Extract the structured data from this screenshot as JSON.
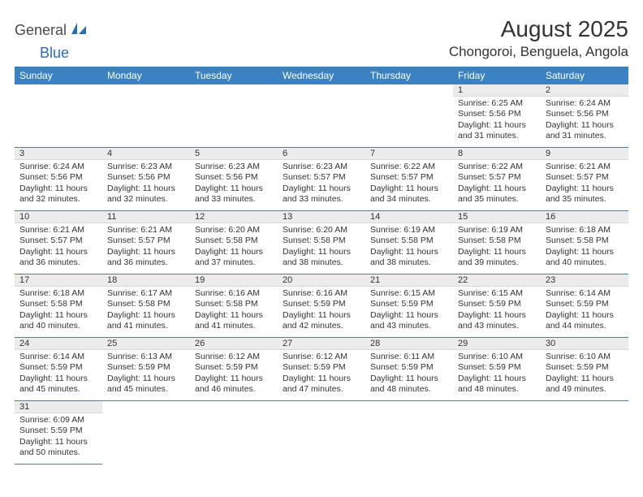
{
  "logo": {
    "text1": "General",
    "text2": "Blue"
  },
  "title": "August 2025",
  "location": "Chongoroi, Benguela, Angola",
  "dayHeaders": [
    "Sunday",
    "Monday",
    "Tuesday",
    "Wednesday",
    "Thursday",
    "Friday",
    "Saturday"
  ],
  "colors": {
    "headerBg": "#3b82c4",
    "headerText": "#ffffff",
    "dayNumBg": "#ececec",
    "rowDivider": "#3b82c4",
    "logoBlue": "#2a6db5"
  },
  "layout": {
    "weeks": 6,
    "firstDayColumn": 5,
    "daysInMonth": 31
  },
  "days": {
    "1": {
      "sunrise": "6:25 AM",
      "sunset": "5:56 PM",
      "daylight": "11 hours and 31 minutes."
    },
    "2": {
      "sunrise": "6:24 AM",
      "sunset": "5:56 PM",
      "daylight": "11 hours and 31 minutes."
    },
    "3": {
      "sunrise": "6:24 AM",
      "sunset": "5:56 PM",
      "daylight": "11 hours and 32 minutes."
    },
    "4": {
      "sunrise": "6:23 AM",
      "sunset": "5:56 PM",
      "daylight": "11 hours and 32 minutes."
    },
    "5": {
      "sunrise": "6:23 AM",
      "sunset": "5:56 PM",
      "daylight": "11 hours and 33 minutes."
    },
    "6": {
      "sunrise": "6:23 AM",
      "sunset": "5:57 PM",
      "daylight": "11 hours and 33 minutes."
    },
    "7": {
      "sunrise": "6:22 AM",
      "sunset": "5:57 PM",
      "daylight": "11 hours and 34 minutes."
    },
    "8": {
      "sunrise": "6:22 AM",
      "sunset": "5:57 PM",
      "daylight": "11 hours and 35 minutes."
    },
    "9": {
      "sunrise": "6:21 AM",
      "sunset": "5:57 PM",
      "daylight": "11 hours and 35 minutes."
    },
    "10": {
      "sunrise": "6:21 AM",
      "sunset": "5:57 PM",
      "daylight": "11 hours and 36 minutes."
    },
    "11": {
      "sunrise": "6:21 AM",
      "sunset": "5:57 PM",
      "daylight": "11 hours and 36 minutes."
    },
    "12": {
      "sunrise": "6:20 AM",
      "sunset": "5:58 PM",
      "daylight": "11 hours and 37 minutes."
    },
    "13": {
      "sunrise": "6:20 AM",
      "sunset": "5:58 PM",
      "daylight": "11 hours and 38 minutes."
    },
    "14": {
      "sunrise": "6:19 AM",
      "sunset": "5:58 PM",
      "daylight": "11 hours and 38 minutes."
    },
    "15": {
      "sunrise": "6:19 AM",
      "sunset": "5:58 PM",
      "daylight": "11 hours and 39 minutes."
    },
    "16": {
      "sunrise": "6:18 AM",
      "sunset": "5:58 PM",
      "daylight": "11 hours and 40 minutes."
    },
    "17": {
      "sunrise": "6:18 AM",
      "sunset": "5:58 PM",
      "daylight": "11 hours and 40 minutes."
    },
    "18": {
      "sunrise": "6:17 AM",
      "sunset": "5:58 PM",
      "daylight": "11 hours and 41 minutes."
    },
    "19": {
      "sunrise": "6:16 AM",
      "sunset": "5:58 PM",
      "daylight": "11 hours and 41 minutes."
    },
    "20": {
      "sunrise": "6:16 AM",
      "sunset": "5:59 PM",
      "daylight": "11 hours and 42 minutes."
    },
    "21": {
      "sunrise": "6:15 AM",
      "sunset": "5:59 PM",
      "daylight": "11 hours and 43 minutes."
    },
    "22": {
      "sunrise": "6:15 AM",
      "sunset": "5:59 PM",
      "daylight": "11 hours and 43 minutes."
    },
    "23": {
      "sunrise": "6:14 AM",
      "sunset": "5:59 PM",
      "daylight": "11 hours and 44 minutes."
    },
    "24": {
      "sunrise": "6:14 AM",
      "sunset": "5:59 PM",
      "daylight": "11 hours and 45 minutes."
    },
    "25": {
      "sunrise": "6:13 AM",
      "sunset": "5:59 PM",
      "daylight": "11 hours and 45 minutes."
    },
    "26": {
      "sunrise": "6:12 AM",
      "sunset": "5:59 PM",
      "daylight": "11 hours and 46 minutes."
    },
    "27": {
      "sunrise": "6:12 AM",
      "sunset": "5:59 PM",
      "daylight": "11 hours and 47 minutes."
    },
    "28": {
      "sunrise": "6:11 AM",
      "sunset": "5:59 PM",
      "daylight": "11 hours and 48 minutes."
    },
    "29": {
      "sunrise": "6:10 AM",
      "sunset": "5:59 PM",
      "daylight": "11 hours and 48 minutes."
    },
    "30": {
      "sunrise": "6:10 AM",
      "sunset": "5:59 PM",
      "daylight": "11 hours and 49 minutes."
    },
    "31": {
      "sunrise": "6:09 AM",
      "sunset": "5:59 PM",
      "daylight": "11 hours and 50 minutes."
    }
  },
  "labels": {
    "sunrise": "Sunrise:",
    "sunset": "Sunset:",
    "daylight": "Daylight:"
  }
}
